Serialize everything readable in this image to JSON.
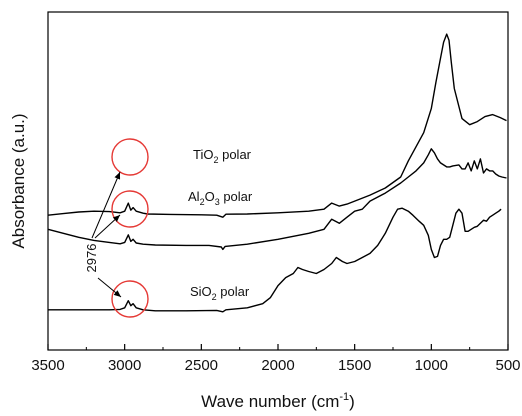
{
  "chart_data": {
    "type": "line",
    "title": "",
    "xlabel": "Wave number (cm",
    "xlabel_sup": "-1",
    "xlabel_end": ")",
    "ylabel": "Absorbance (a.u.)",
    "xlim": [
      3500,
      500
    ],
    "x_reversed": true,
    "x_ticks": [
      3500,
      3000,
      2500,
      2000,
      1500,
      1000,
      500
    ],
    "y_ticks_shown": false,
    "grid": false,
    "legend": "none",
    "series": [
      {
        "label_main": "TiO",
        "label_sub": "2",
        "label_end": " polar",
        "color": "#000000",
        "points": [
          [
            3500,
            0.77
          ],
          [
            3400,
            0.778
          ],
          [
            3300,
            0.786
          ],
          [
            3200,
            0.79
          ],
          [
            3100,
            0.788
          ],
          [
            3030,
            0.782
          ],
          [
            3000,
            0.79
          ],
          [
            2976,
            0.83
          ],
          [
            2960,
            0.795
          ],
          [
            2945,
            0.808
          ],
          [
            2925,
            0.79
          ],
          [
            2880,
            0.78
          ],
          [
            2850,
            0.776
          ],
          [
            2700,
            0.774
          ],
          [
            2500,
            0.772
          ],
          [
            2400,
            0.77
          ],
          [
            2360,
            0.76
          ],
          [
            2340,
            0.775
          ],
          [
            2200,
            0.776
          ],
          [
            2000,
            0.782
          ],
          [
            1800,
            0.79
          ],
          [
            1700,
            0.8
          ],
          [
            1650,
            0.83
          ],
          [
            1600,
            0.815
          ],
          [
            1550,
            0.825
          ],
          [
            1500,
            0.84
          ],
          [
            1400,
            0.87
          ],
          [
            1300,
            0.905
          ],
          [
            1200,
            0.96
          ],
          [
            1150,
            1.04
          ],
          [
            1100,
            1.11
          ],
          [
            1050,
            1.18
          ],
          [
            1000,
            1.3
          ],
          [
            970,
            1.43
          ],
          [
            940,
            1.55
          ],
          [
            920,
            1.63
          ],
          [
            900,
            1.67
          ],
          [
            885,
            1.64
          ],
          [
            870,
            1.53
          ],
          [
            850,
            1.4
          ],
          [
            800,
            1.25
          ],
          [
            750,
            1.22
          ],
          [
            700,
            1.235
          ],
          [
            650,
            1.26
          ],
          [
            600,
            1.27
          ],
          [
            550,
            1.255
          ],
          [
            510,
            1.24
          ]
        ]
      },
      {
        "label_main": "Al",
        "label_sub": "2",
        "label_mid": "O",
        "label_sub2": "3",
        "label_end": " polar",
        "color": "#000000",
        "points": [
          [
            3500,
            0.7
          ],
          [
            3400,
            0.68
          ],
          [
            3300,
            0.66
          ],
          [
            3200,
            0.645
          ],
          [
            3100,
            0.635
          ],
          [
            3030,
            0.628
          ],
          [
            3000,
            0.635
          ],
          [
            2976,
            0.672
          ],
          [
            2960,
            0.64
          ],
          [
            2945,
            0.65
          ],
          [
            2925,
            0.632
          ],
          [
            2880,
            0.626
          ],
          [
            2800,
            0.622
          ],
          [
            2600,
            0.62
          ],
          [
            2450,
            0.62
          ],
          [
            2370,
            0.612
          ],
          [
            2360,
            0.6
          ],
          [
            2345,
            0.615
          ],
          [
            2200,
            0.626
          ],
          [
            2000,
            0.65
          ],
          [
            1800,
            0.68
          ],
          [
            1700,
            0.7
          ],
          [
            1650,
            0.75
          ],
          [
            1600,
            0.73
          ],
          [
            1550,
            0.76
          ],
          [
            1500,
            0.79
          ],
          [
            1450,
            0.8
          ],
          [
            1400,
            0.84
          ],
          [
            1300,
            0.88
          ],
          [
            1200,
            0.93
          ],
          [
            1150,
            0.96
          ],
          [
            1100,
            0.99
          ],
          [
            1050,
            1.03
          ],
          [
            1020,
            1.07
          ],
          [
            1000,
            1.1
          ],
          [
            980,
            1.08
          ],
          [
            960,
            1.05
          ],
          [
            940,
            1.03
          ],
          [
            920,
            1.02
          ],
          [
            900,
            1.01
          ],
          [
            880,
            1.01
          ],
          [
            860,
            1.015
          ],
          [
            820,
            1.02
          ],
          [
            800,
            1.0
          ],
          [
            780,
            1.0
          ],
          [
            760,
            1.03
          ],
          [
            740,
            0.99
          ],
          [
            720,
            1.04
          ],
          [
            700,
            1.0
          ],
          [
            680,
            1.05
          ],
          [
            660,
            0.98
          ],
          [
            640,
            1.0
          ],
          [
            620,
            0.99
          ],
          [
            600,
            0.99
          ],
          [
            580,
            0.975
          ],
          [
            560,
            0.965
          ],
          [
            540,
            0.96
          ],
          [
            510,
            0.955
          ]
        ]
      },
      {
        "label_main": "SiO",
        "label_sub": "2",
        "label_end": " polar",
        "color": "#000000",
        "points": [
          [
            3500,
            0.3
          ],
          [
            3300,
            0.3
          ],
          [
            3100,
            0.3
          ],
          [
            3030,
            0.302
          ],
          [
            3000,
            0.31
          ],
          [
            2976,
            0.345
          ],
          [
            2960,
            0.32
          ],
          [
            2945,
            0.33
          ],
          [
            2925,
            0.31
          ],
          [
            2880,
            0.3
          ],
          [
            2800,
            0.295
          ],
          [
            2600,
            0.295
          ],
          [
            2400,
            0.297
          ],
          [
            2360,
            0.29
          ],
          [
            2340,
            0.3
          ],
          [
            2200,
            0.31
          ],
          [
            2100,
            0.33
          ],
          [
            2050,
            0.36
          ],
          [
            2000,
            0.42
          ],
          [
            1950,
            0.46
          ],
          [
            1900,
            0.48
          ],
          [
            1870,
            0.51
          ],
          [
            1840,
            0.5
          ],
          [
            1800,
            0.49
          ],
          [
            1750,
            0.48
          ],
          [
            1700,
            0.5
          ],
          [
            1650,
            0.53
          ],
          [
            1620,
            0.56
          ],
          [
            1580,
            0.54
          ],
          [
            1550,
            0.53
          ],
          [
            1500,
            0.54
          ],
          [
            1450,
            0.56
          ],
          [
            1400,
            0.58
          ],
          [
            1350,
            0.62
          ],
          [
            1300,
            0.68
          ],
          [
            1250,
            0.76
          ],
          [
            1220,
            0.8
          ],
          [
            1190,
            0.805
          ],
          [
            1150,
            0.79
          ],
          [
            1120,
            0.77
          ],
          [
            1080,
            0.74
          ],
          [
            1050,
            0.72
          ],
          [
            1020,
            0.67
          ],
          [
            1000,
            0.6
          ],
          [
            980,
            0.56
          ],
          [
            960,
            0.565
          ],
          [
            940,
            0.62
          ],
          [
            920,
            0.65
          ],
          [
            900,
            0.65
          ],
          [
            880,
            0.66
          ],
          [
            860,
            0.72
          ],
          [
            840,
            0.78
          ],
          [
            820,
            0.8
          ],
          [
            800,
            0.78
          ],
          [
            780,
            0.69
          ],
          [
            760,
            0.69
          ],
          [
            740,
            0.7
          ],
          [
            720,
            0.71
          ],
          [
            700,
            0.715
          ],
          [
            680,
            0.73
          ],
          [
            660,
            0.745
          ],
          [
            640,
            0.74
          ],
          [
            620,
            0.76
          ],
          [
            600,
            0.77
          ],
          [
            580,
            0.78
          ],
          [
            560,
            0.79
          ],
          [
            545,
            0.8
          ]
        ]
      }
    ],
    "annotations": {
      "peak_label": "2976",
      "circle_color": "#e53935",
      "circles_at": [
        [
          2976,
          0.808
        ],
        [
          2976,
          0.648
        ],
        [
          2976,
          0.325
        ]
      ]
    }
  }
}
